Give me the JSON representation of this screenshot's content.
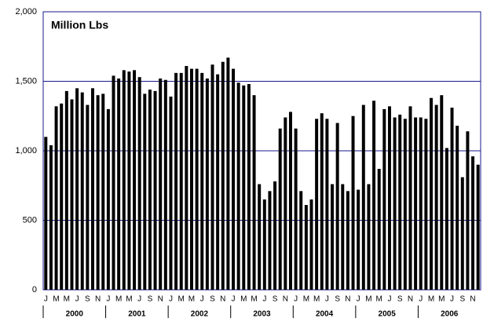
{
  "chart_data": {
    "type": "bar",
    "title": "Million Lbs",
    "categories": [
      "J",
      null,
      "M",
      null,
      "M",
      null,
      "J",
      null,
      "S",
      null,
      "N",
      null,
      "J",
      null,
      "M",
      null,
      "M",
      null,
      "J",
      null,
      "S",
      null,
      "N",
      null,
      "J",
      null,
      "M",
      null,
      "M",
      null,
      "J",
      null,
      "S",
      null,
      "N",
      null,
      "J",
      null,
      "M",
      null,
      "M",
      null,
      "J",
      null,
      "S",
      null,
      "N",
      null,
      "J",
      null,
      "M",
      null,
      "M",
      null,
      "J",
      null,
      "S",
      null,
      "N",
      null,
      "J",
      null,
      "M",
      null,
      "M",
      null,
      "J",
      null,
      "S",
      null,
      "N",
      null,
      "J",
      null,
      "M",
      null,
      "M",
      null,
      "J",
      null,
      "S",
      null,
      "N",
      null
    ],
    "years": [
      "2000",
      "2001",
      "2002",
      "2003",
      "2004",
      "2005",
      "2006"
    ],
    "values": [
      1100,
      1040,
      1320,
      1340,
      1430,
      1370,
      1450,
      1420,
      1330,
      1450,
      1400,
      1410,
      1300,
      1540,
      1520,
      1580,
      1570,
      1580,
      1530,
      1410,
      1440,
      1430,
      1520,
      1510,
      1390,
      1560,
      1560,
      1610,
      1590,
      1590,
      1560,
      1520,
      1620,
      1550,
      1640,
      1670,
      1590,
      1490,
      1470,
      1480,
      1400,
      760,
      650,
      710,
      780,
      1160,
      1240,
      1280,
      1160,
      710,
      610,
      650,
      1230,
      1270,
      1230,
      760,
      1200,
      760,
      710,
      1250,
      720,
      1330,
      760,
      1360,
      870,
      1300,
      1320,
      1240,
      1260,
      1230,
      1320,
      1240,
      1240,
      1230,
      1380,
      1330,
      1400,
      1020,
      1310,
      1180,
      810,
      1140,
      960,
      900
    ],
    "color": "#000000",
    "ylim": [
      0,
      2000
    ],
    "yticks": [
      0,
      500,
      {
        "value": 1000,
        "label": "1,000"
      },
      {
        "value": 1500,
        "label": "1,500"
      },
      {
        "value": 2000,
        "label": "2,000"
      }
    ],
    "grid": true,
    "grid_color": "#1a1a8c"
  }
}
